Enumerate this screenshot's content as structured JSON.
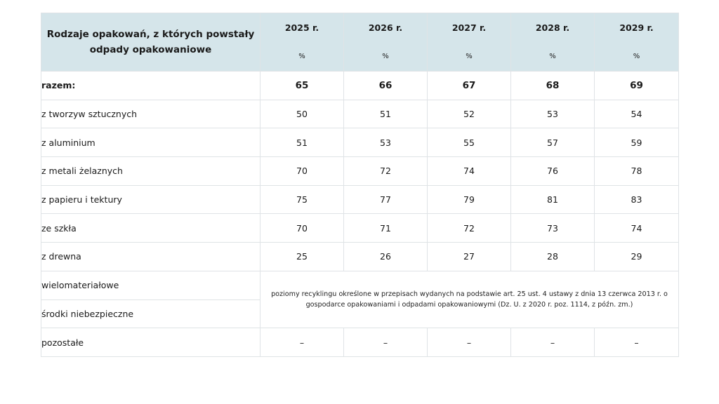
{
  "header": {
    "label": "Rodzaje opakowań, z których powstały odpady opakowaniowe",
    "years": [
      "2025 r.",
      "2026 r.",
      "2027 r.",
      "2028 r.",
      "2029 r."
    ],
    "unit": "%"
  },
  "rows": [
    {
      "label": "razem:",
      "values": [
        "65",
        "66",
        "67",
        "68",
        "69"
      ],
      "total": true
    },
    {
      "label": "z tworzyw sztucznych",
      "values": [
        "50",
        "51",
        "52",
        "53",
        "54"
      ]
    },
    {
      "label": "z aluminium",
      "values": [
        "51",
        "53",
        "55",
        "57",
        "59"
      ]
    },
    {
      "label": "z metali żelaznych",
      "values": [
        "70",
        "72",
        "74",
        "76",
        "78"
      ]
    },
    {
      "label": "z papieru i tektury",
      "values": [
        "75",
        "77",
        "79",
        "81",
        "83"
      ]
    },
    {
      "label": "ze szkła",
      "values": [
        "70",
        "71",
        "72",
        "73",
        "74"
      ]
    },
    {
      "label": "z drewna",
      "values": [
        "25",
        "26",
        "27",
        "28",
        "29"
      ]
    }
  ],
  "special_rows": {
    "labels": [
      "wielomateriałowe",
      "środki niebezpieczne"
    ],
    "note": "poziomy recyklingu określone w przepisach wydanych na podstawie art. 25 ust. 4 ustawy z dnia 13 czerwca 2013 r. o gospodarce opakowaniami i odpadami opakowaniowymi (Dz. U. z 2020 r. poz. 1114, z późn. zm.)"
  },
  "last_row": {
    "label": "pozostałe",
    "values": [
      "–",
      "–",
      "–",
      "–",
      "–"
    ]
  },
  "colors": {
    "header_bg": "#d5e5ea",
    "border": "#dfe3e6"
  }
}
